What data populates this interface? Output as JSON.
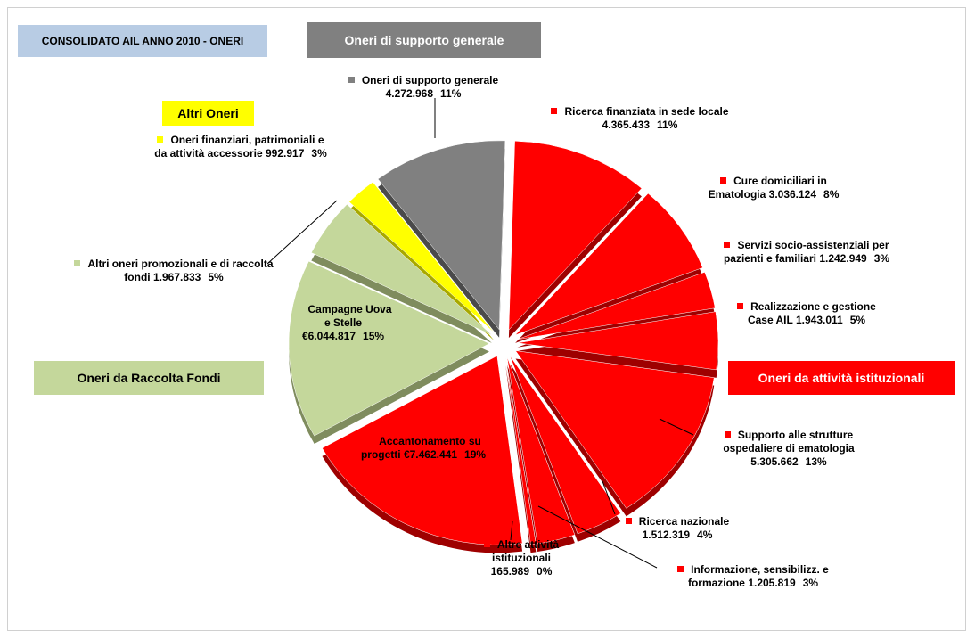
{
  "chart_data": {
    "type": "pie",
    "title": "CONSOLIDATO AIL ANNO 2010 - ONERI",
    "categories": [
      "Ricerca finanziata in sede locale",
      "Cure domiciliari in Ematologia",
      "Servizi socio-assistenziali per pazienti e familiari",
      "Realizzazione e gestione Case AIL",
      "Supporto alle strutture ospedaliere di ematologia",
      "Ricerca nazionale",
      "Informazione, sensibilizz. e formazione",
      "Altre attività istituzionali",
      "Accantonamento su progetti",
      "Campagne Uova e Stelle",
      "Altri oneri promozionali e di raccolta fondi",
      "Oneri finanziari, patrimoniali e da attività accessorie",
      "Oneri di supporto generale"
    ],
    "values": [
      4365433,
      3036124,
      1242949,
      1943011,
      5305662,
      1512319,
      1205819,
      165989,
      7462441,
      6044817,
      1967833,
      992917,
      4272968
    ],
    "value_labels": [
      "4.365.433",
      "3.036.124",
      "1.242.949",
      "1.943.011",
      "5.305.662",
      "1.512.319",
      "1.205.819",
      "165.989",
      "€7.462.441",
      "€6.044.817",
      "1.967.833",
      "992.917",
      "4.272.968"
    ],
    "percent_labels": [
      "11%",
      "8%",
      "3%",
      "5%",
      "13%",
      "4%",
      "3%",
      "0%",
      "19%",
      "15%",
      "5%",
      "3%",
      "11%"
    ],
    "colors": [
      "#ff0000",
      "#ff0000",
      "#ff0000",
      "#ff0000",
      "#ff0000",
      "#ff0000",
      "#ff0000",
      "#ff0000",
      "#ff0000",
      "#c4d79b",
      "#c4d79b",
      "#ffff00",
      "#808080"
    ],
    "groups": [
      {
        "label": "Oneri di supporto generale",
        "color": "#808080"
      },
      {
        "label": "Altri Oneri",
        "color": "#ffff00"
      },
      {
        "label": "Oneri da Raccolta Fondi",
        "color": "#c4d79b"
      },
      {
        "label": "Oneri da attività istituzionali",
        "color": "#ff0000"
      }
    ]
  }
}
